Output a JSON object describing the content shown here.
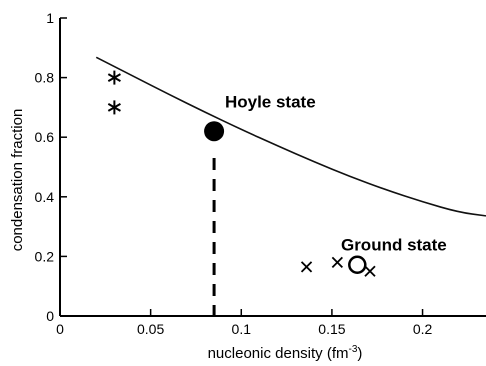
{
  "chart_data": {
    "type": "scatter",
    "xlabel": "nucleonic density (fm",
    "xlabel_unit_superscript": "-3",
    "xlabel_close": ")",
    "ylabel": "condensation fraction",
    "xlim": [
      0,
      0.235
    ],
    "ylim": [
      0,
      1
    ],
    "grid": false,
    "x_ticks": [
      {
        "value": 0,
        "label": "0"
      },
      {
        "value": 0.05,
        "label": "0.05"
      },
      {
        "value": 0.1,
        "label": "0.1"
      },
      {
        "value": 0.15,
        "label": "0.15"
      },
      {
        "value": 0.2,
        "label": "0.2"
      }
    ],
    "y_ticks": [
      {
        "value": 0,
        "label": "0"
      },
      {
        "value": 0.2,
        "label": "0.2"
      },
      {
        "value": 0.4,
        "label": "0.4"
      },
      {
        "value": 0.6,
        "label": "0.6"
      },
      {
        "value": 0.8,
        "label": "0.8"
      },
      {
        "value": 1,
        "label": "1"
      }
    ],
    "curve": {
      "x": [
        0.02,
        0.04,
        0.06,
        0.08,
        0.1,
        0.12,
        0.14,
        0.16,
        0.18,
        0.2,
        0.22,
        0.235
      ],
      "y": [
        0.868,
        0.806,
        0.744,
        0.684,
        0.626,
        0.571,
        0.518,
        0.468,
        0.423,
        0.383,
        0.348,
        0.336
      ]
    },
    "asterisk_points": [
      {
        "x": 0.03,
        "y": 0.8
      },
      {
        "x": 0.03,
        "y": 0.7
      }
    ],
    "cross_points": [
      {
        "x": 0.136,
        "y": 0.165
      },
      {
        "x": 0.153,
        "y": 0.18
      },
      {
        "x": 0.171,
        "y": 0.15
      }
    ],
    "hoyle_point": {
      "x": 0.085,
      "y": 0.62
    },
    "ground_point": {
      "x": 0.164,
      "y": 0.172
    },
    "hoyle_dashed_line": {
      "x": 0.085,
      "y_from": 0.0,
      "y_to": 0.53
    },
    "annotations": [
      {
        "text": "Hoyle state",
        "x": 0.091,
        "y": 0.7
      },
      {
        "text": "Ground state",
        "x": 0.155,
        "y": 0.22
      }
    ]
  }
}
